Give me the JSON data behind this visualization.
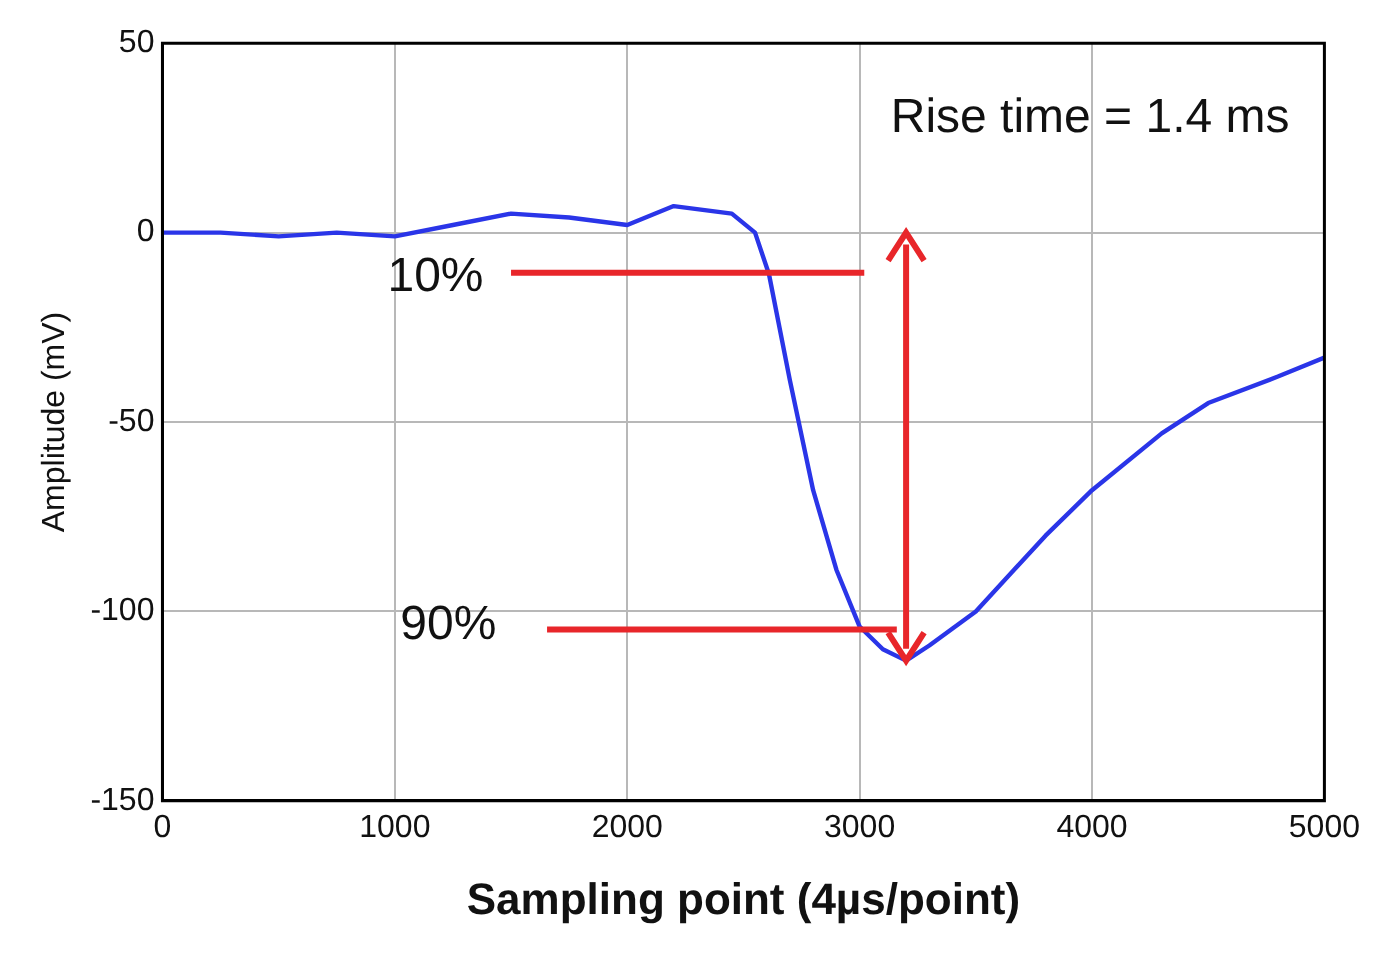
{
  "chart_data": {
    "type": "line",
    "xlabel": "Sampling point (4µs/point)",
    "ylabel": "Amplitude (mV)",
    "x": [
      0,
      250,
      500,
      750,
      1000,
      1250,
      1500,
      1750,
      2000,
      2200,
      2450,
      2550,
      2610,
      2700,
      2800,
      2900,
      3000,
      3100,
      3200,
      3300,
      3500,
      3800,
      4000,
      4300,
      4500,
      4800,
      5000
    ],
    "series": [
      {
        "color": "#2a35e8",
        "values": [
          0,
          0,
          -1,
          0,
          -1,
          2,
          5,
          4,
          2,
          7,
          5,
          0,
          -11,
          -39,
          -68,
          -89,
          -104,
          -110,
          -113,
          -109,
          -100,
          -80,
          -68,
          -53,
          -45,
          -38,
          -33
        ]
      }
    ],
    "xlim": [
      0,
      5000
    ],
    "xticks": [
      0,
      1000,
      2000,
      3000,
      4000,
      5000
    ],
    "ylim": [
      -150,
      50
    ],
    "yticks": [
      -150,
      -100,
      -50,
      0,
      50
    ],
    "grid": true,
    "legend": false,
    "marker": "none",
    "line_style": "solid",
    "annotations": [
      "10%",
      "90%",
      "Rise time = 1.4 ms"
    ]
  }
}
